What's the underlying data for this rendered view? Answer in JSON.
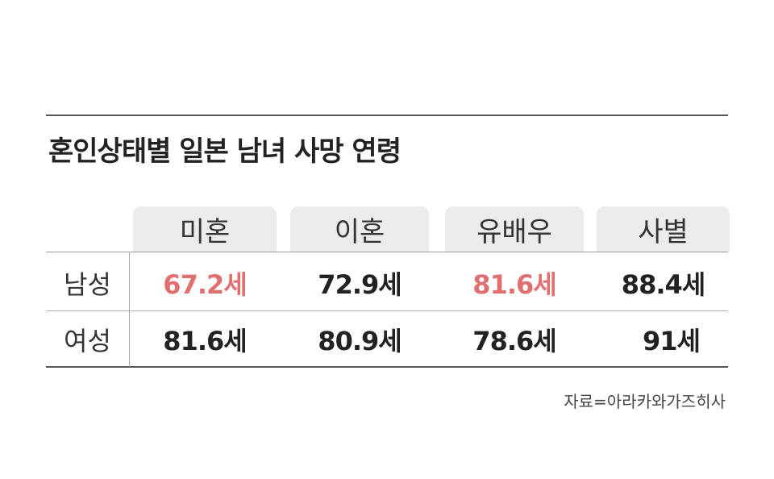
{
  "title": "혼인상태별 일본 남녀 사망 연령",
  "table": {
    "header": [
      "미혼",
      "이혼",
      "유배우",
      "사별"
    ],
    "rows": [
      {
        "label": "남성",
        "cells": [
          "67.2세",
          "72.9세",
          "81.6세",
          "88.4세"
        ]
      },
      {
        "label": "여성",
        "cells": [
          "81.6세",
          "80.9세",
          "78.6세",
          "91세"
        ]
      }
    ]
  },
  "source": "자료=아라카와가즈히사"
}
